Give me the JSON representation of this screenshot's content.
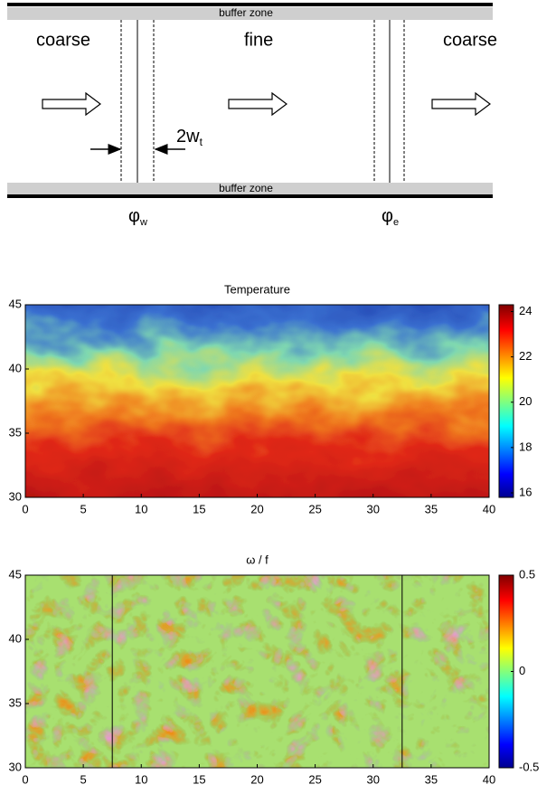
{
  "diagram": {
    "buffer_top": "buffer zone",
    "buffer_bottom": "buffer zone",
    "left": "coarse",
    "middle": "fine",
    "right": "coarse",
    "width_label": "2w",
    "width_sub": "t",
    "phi_w": "φ",
    "phi_w_sub": "w",
    "phi_e": "φ",
    "phi_e_sub": "e"
  },
  "chart_data": [
    {
      "type": "heatmap",
      "title": "Temperature",
      "xlim": [
        0,
        40
      ],
      "xticks": [
        0,
        5,
        10,
        15,
        20,
        25,
        30,
        35,
        40
      ],
      "ylim": [
        30,
        45
      ],
      "yticks": [
        30,
        35,
        40,
        45
      ],
      "colorbar_lim": [
        15.8,
        24.3
      ],
      "colorbar_ticks": [
        16,
        18,
        20,
        22,
        24
      ],
      "colormap": "jet"
    },
    {
      "type": "heatmap",
      "title": "ω / f",
      "xlim": [
        0,
        40
      ],
      "xticks": [
        0,
        5,
        10,
        15,
        20,
        25,
        30,
        35,
        40
      ],
      "ylim": [
        30,
        45
      ],
      "yticks": [
        30,
        35,
        40,
        45
      ],
      "colorbar_lim": [
        -0.5,
        0.5
      ],
      "colorbar_ticks": [
        -0.5,
        0,
        0.5
      ],
      "colormap": "jet",
      "vlines": [
        7.5,
        32.5
      ]
    }
  ]
}
